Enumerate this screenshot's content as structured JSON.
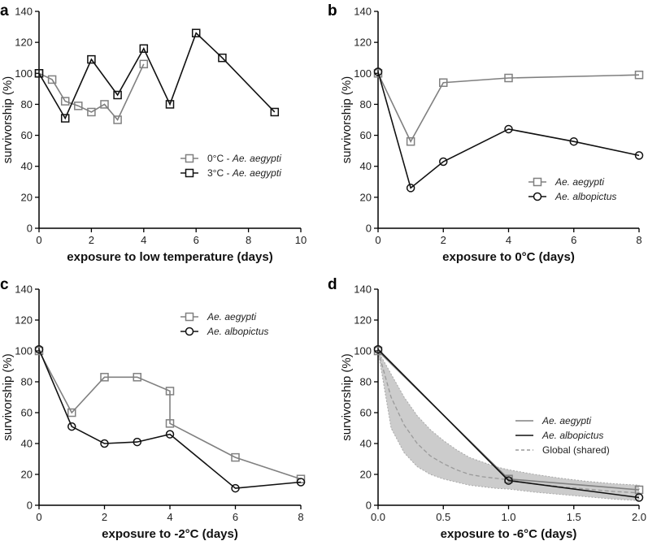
{
  "colors": {
    "gray": "#808080",
    "black": "#111111",
    "band": "#cccccc",
    "dash": "#9a9a9a"
  },
  "chart_data": [
    {
      "panel": "a",
      "type": "line",
      "xlabel": "exposure to low temperature (days)",
      "ylabel": "survivorship (%)",
      "xlim": [
        0,
        10
      ],
      "ylim": [
        0,
        140
      ],
      "xticks": [
        "0",
        "2",
        "4",
        "6",
        "8",
        "10"
      ],
      "yticks": [
        "0",
        "20",
        "40",
        "60",
        "80",
        "100",
        "120",
        "140"
      ],
      "legend_position": "lower-right",
      "series": [
        {
          "name": "0°C - Ae. aegypti",
          "prefix": "0°C - ",
          "species": "Ae. aegypti",
          "color": "#808080",
          "marker": "square",
          "x": [
            0,
            0.5,
            1,
            1.5,
            2,
            2.5,
            3,
            4
          ],
          "y": [
            100,
            96,
            82,
            79,
            75,
            80,
            70,
            106
          ]
        },
        {
          "name": "3°C - Ae. aegypti",
          "prefix": "3°C - ",
          "species": "Ae. aegypti",
          "color": "#111111",
          "marker": "square",
          "x": [
            0,
            1,
            2,
            3,
            4,
            5,
            6,
            7,
            9
          ],
          "y": [
            100,
            71,
            109,
            86,
            116,
            80,
            126,
            110,
            75
          ]
        }
      ]
    },
    {
      "panel": "b",
      "type": "line",
      "xlabel": "exposure to 0°C (days)",
      "ylabel": "survivorship (%)",
      "xlim": [
        0,
        8
      ],
      "ylim": [
        0,
        140
      ],
      "xticks": [
        "0",
        "2",
        "4",
        "6",
        "8"
      ],
      "yticks": [
        "0",
        "20",
        "40",
        "60",
        "80",
        "100",
        "120",
        "140"
      ],
      "legend_position": "lower-right",
      "series": [
        {
          "name": "Ae. aegypti",
          "color": "#808080",
          "marker": "square",
          "x": [
            0,
            1,
            2,
            4,
            8
          ],
          "y": [
            100,
            56,
            94,
            97,
            99
          ]
        },
        {
          "name": "Ae. albopictus",
          "color": "#111111",
          "marker": "circle",
          "x": [
            0,
            1,
            2,
            4,
            6,
            8
          ],
          "y": [
            101,
            26,
            43,
            64,
            56,
            47
          ]
        }
      ]
    },
    {
      "panel": "c",
      "type": "line",
      "xlabel": "exposure to -2°C (days)",
      "ylabel": "survivorship (%)",
      "xlim": [
        0,
        8
      ],
      "ylim": [
        0,
        140
      ],
      "xticks": [
        "0",
        "2",
        "4",
        "6",
        "8"
      ],
      "yticks": [
        "0",
        "20",
        "40",
        "60",
        "80",
        "100",
        "120",
        "140"
      ],
      "legend_position": "top-right",
      "series": [
        {
          "name": "Ae. aegypti",
          "color": "#808080",
          "marker": "square",
          "x": [
            0,
            1,
            2,
            3,
            4,
            4,
            6,
            8
          ],
          "y": [
            100,
            60,
            83,
            83,
            74,
            53,
            31,
            17
          ]
        },
        {
          "name": "Ae. albopictus",
          "color": "#111111",
          "marker": "circle",
          "x": [
            0,
            1,
            2,
            3,
            4,
            6,
            8
          ],
          "y": [
            101,
            51,
            40,
            41,
            46,
            11,
            15
          ]
        }
      ]
    },
    {
      "panel": "d",
      "type": "line",
      "xlabel": "exposure to -6°C (days)",
      "ylabel": "survivorship (%)",
      "xlim": [
        0,
        2
      ],
      "ylim": [
        0,
        140
      ],
      "xticks": [
        "0.0",
        "0.5",
        "1.0",
        "1.5",
        "2.0"
      ],
      "yticks": [
        "0",
        "20",
        "40",
        "60",
        "80",
        "100",
        "120",
        "140"
      ],
      "legend_position": "lower-right",
      "series": [
        {
          "name": "Ae. aegypti",
          "color": "#808080",
          "marker": "square",
          "x": [
            0,
            1,
            2
          ],
          "y": [
            100,
            17,
            10
          ]
        },
        {
          "name": "Ae. albopictus",
          "color": "#111111",
          "marker": "circle",
          "x": [
            0,
            1,
            2
          ],
          "y": [
            101,
            16,
            5
          ]
        }
      ],
      "fit": {
        "name": "Global (shared)",
        "x": [
          0,
          0.1,
          0.2,
          0.3,
          0.4,
          0.5,
          0.6,
          0.7,
          0.8,
          0.9,
          1.0,
          1.2,
          1.4,
          1.6,
          1.8,
          2.0
        ],
        "mean": [
          100,
          70,
          52,
          40,
          32,
          27,
          23,
          20,
          18.5,
          17.5,
          16.5,
          14,
          12,
          10.5,
          9,
          8
        ],
        "upper": [
          100,
          85,
          70,
          58,
          49,
          42,
          36,
          31,
          28,
          25,
          23,
          20,
          17.5,
          15.5,
          14,
          13
        ],
        "lower": [
          100,
          50,
          34,
          25,
          20,
          17,
          15,
          13,
          12,
          11,
          10.5,
          8.5,
          7,
          5.5,
          4,
          3
        ]
      }
    }
  ]
}
